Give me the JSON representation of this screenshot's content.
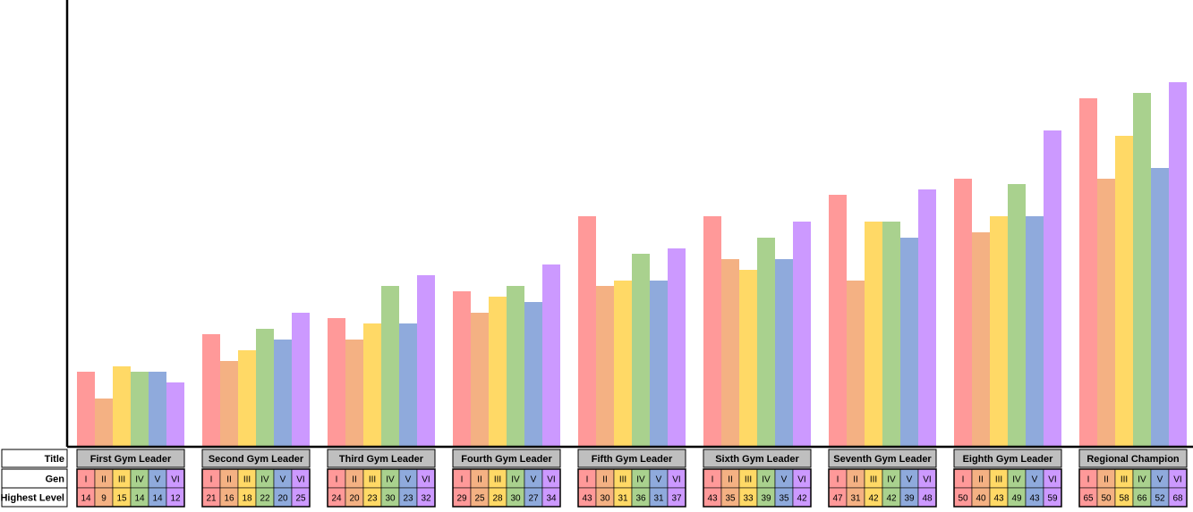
{
  "chart_data": {
    "type": "bar",
    "title": "",
    "xlabel": "",
    "ylabel": "",
    "ylim": [
      0,
      70
    ],
    "grid": false,
    "legend": "none",
    "row_labels": [
      "Title",
      "Gen",
      "Highest Level"
    ],
    "categories": [
      "First Gym Leader",
      "Second Gym Leader",
      "Third Gym Leader",
      "Fourth Gym Leader",
      "Fifth Gym Leader",
      "Sixth Gym Leader",
      "Seventh Gym Leader",
      "Eighth Gym Leader",
      "Regional Champion"
    ],
    "series": [
      {
        "name": "I",
        "color": "#ff9999",
        "values": [
          14,
          21,
          24,
          29,
          43,
          43,
          47,
          50,
          65
        ]
      },
      {
        "name": "II",
        "color": "#f4b183",
        "values": [
          9,
          16,
          20,
          25,
          30,
          35,
          31,
          40,
          50
        ]
      },
      {
        "name": "III",
        "color": "#ffd966",
        "values": [
          15,
          18,
          23,
          28,
          31,
          33,
          42,
          43,
          58
        ]
      },
      {
        "name": "IV",
        "color": "#a9d18e",
        "values": [
          14,
          22,
          30,
          30,
          36,
          39,
          42,
          49,
          66
        ]
      },
      {
        "name": "V",
        "color": "#8faadc",
        "values": [
          14,
          20,
          23,
          27,
          31,
          35,
          39,
          43,
          52
        ]
      },
      {
        "name": "VI",
        "color": "#cc99ff",
        "values": [
          12,
          25,
          32,
          34,
          37,
          42,
          48,
          59,
          68
        ]
      }
    ],
    "header_color": "#bfbfbf"
  }
}
